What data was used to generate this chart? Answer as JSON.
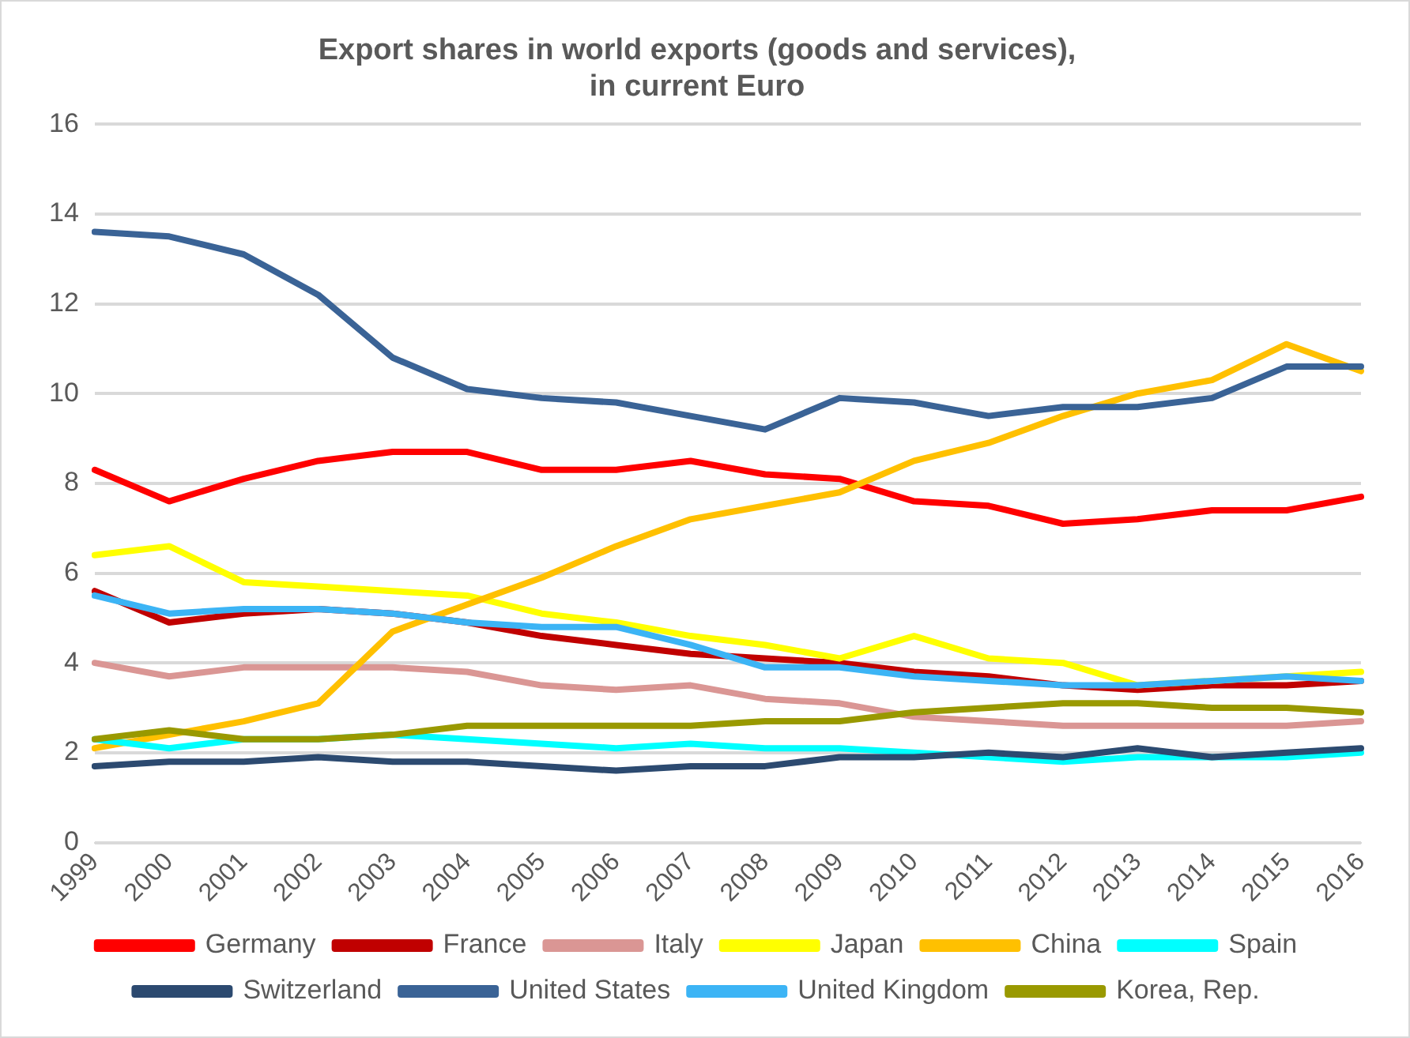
{
  "chart_data": {
    "type": "line",
    "title": "Export shares in world exports (goods and services),\nin current Euro",
    "categories": [
      "1999",
      "2000",
      "2001",
      "2002",
      "2003",
      "2004",
      "2005",
      "2006",
      "2007",
      "2008",
      "2009",
      "2010",
      "2011",
      "2012",
      "2013",
      "2014",
      "2015",
      "2016"
    ],
    "ylim": [
      0,
      16
    ],
    "yticks": [
      0,
      2,
      4,
      6,
      8,
      10,
      12,
      14,
      16
    ],
    "grid": "y",
    "legend": "bottom",
    "marker": "none",
    "line_style": "solid",
    "series": [
      {
        "name": "Germany",
        "color": "#ff0000",
        "values": [
          8.3,
          7.6,
          8.1,
          8.5,
          8.7,
          8.7,
          8.3,
          8.3,
          8.5,
          8.2,
          8.1,
          7.6,
          7.5,
          7.1,
          7.2,
          7.4,
          7.4,
          7.7
        ]
      },
      {
        "name": "France",
        "color": "#c00000",
        "values": [
          5.6,
          4.9,
          5.1,
          5.2,
          5.1,
          4.9,
          4.6,
          4.4,
          4.2,
          4.1,
          4.0,
          3.8,
          3.7,
          3.5,
          3.4,
          3.5,
          3.5,
          3.6
        ]
      },
      {
        "name": "Italy",
        "color": "#da9694",
        "values": [
          4.0,
          3.7,
          3.9,
          3.9,
          3.9,
          3.8,
          3.5,
          3.4,
          3.5,
          3.2,
          3.1,
          2.8,
          2.7,
          2.6,
          2.6,
          2.6,
          2.6,
          2.7
        ]
      },
      {
        "name": "Japan",
        "color": "#ffff00",
        "values": [
          6.4,
          6.6,
          5.8,
          5.7,
          5.6,
          5.5,
          5.1,
          4.9,
          4.6,
          4.4,
          4.1,
          4.6,
          4.1,
          4.0,
          3.5,
          3.6,
          3.7,
          3.8
        ]
      },
      {
        "name": "China",
        "color": "#ffc000",
        "values": [
          2.1,
          2.4,
          2.7,
          3.1,
          4.7,
          5.3,
          5.9,
          6.6,
          7.2,
          7.5,
          7.8,
          8.5,
          8.9,
          9.5,
          10.0,
          10.3,
          11.1,
          10.5
        ]
      },
      {
        "name": "Spain",
        "color": "#00ffff",
        "values": [
          2.3,
          2.1,
          2.3,
          2.3,
          2.4,
          2.3,
          2.2,
          2.1,
          2.2,
          2.1,
          2.1,
          2.0,
          1.9,
          1.8,
          1.9,
          1.9,
          1.9,
          2.0
        ]
      },
      {
        "name": "Switzerland",
        "color": "#2c4a70",
        "values": [
          1.7,
          1.8,
          1.8,
          1.9,
          1.8,
          1.8,
          1.7,
          1.6,
          1.7,
          1.7,
          1.9,
          1.9,
          2.0,
          1.9,
          2.1,
          1.9,
          2.0,
          2.1
        ]
      },
      {
        "name": "United States",
        "color": "#3a6396",
        "values": [
          13.6,
          13.5,
          13.1,
          12.2,
          10.8,
          10.1,
          9.9,
          9.8,
          9.5,
          9.2,
          9.9,
          9.8,
          9.5,
          9.7,
          9.7,
          9.9,
          10.6,
          10.6
        ]
      },
      {
        "name": "United Kingdom",
        "color": "#3cb4f5",
        "values": [
          5.5,
          5.1,
          5.2,
          5.2,
          5.1,
          4.9,
          4.8,
          4.8,
          4.4,
          3.9,
          3.9,
          3.7,
          3.6,
          3.5,
          3.5,
          3.6,
          3.7,
          3.6
        ]
      },
      {
        "name": "Korea, Rep.",
        "color": "#999900",
        "values": [
          2.3,
          2.5,
          2.3,
          2.3,
          2.4,
          2.6,
          2.6,
          2.6,
          2.6,
          2.7,
          2.7,
          2.9,
          3.0,
          3.1,
          3.1,
          3.0,
          3.0,
          2.9
        ]
      }
    ]
  }
}
